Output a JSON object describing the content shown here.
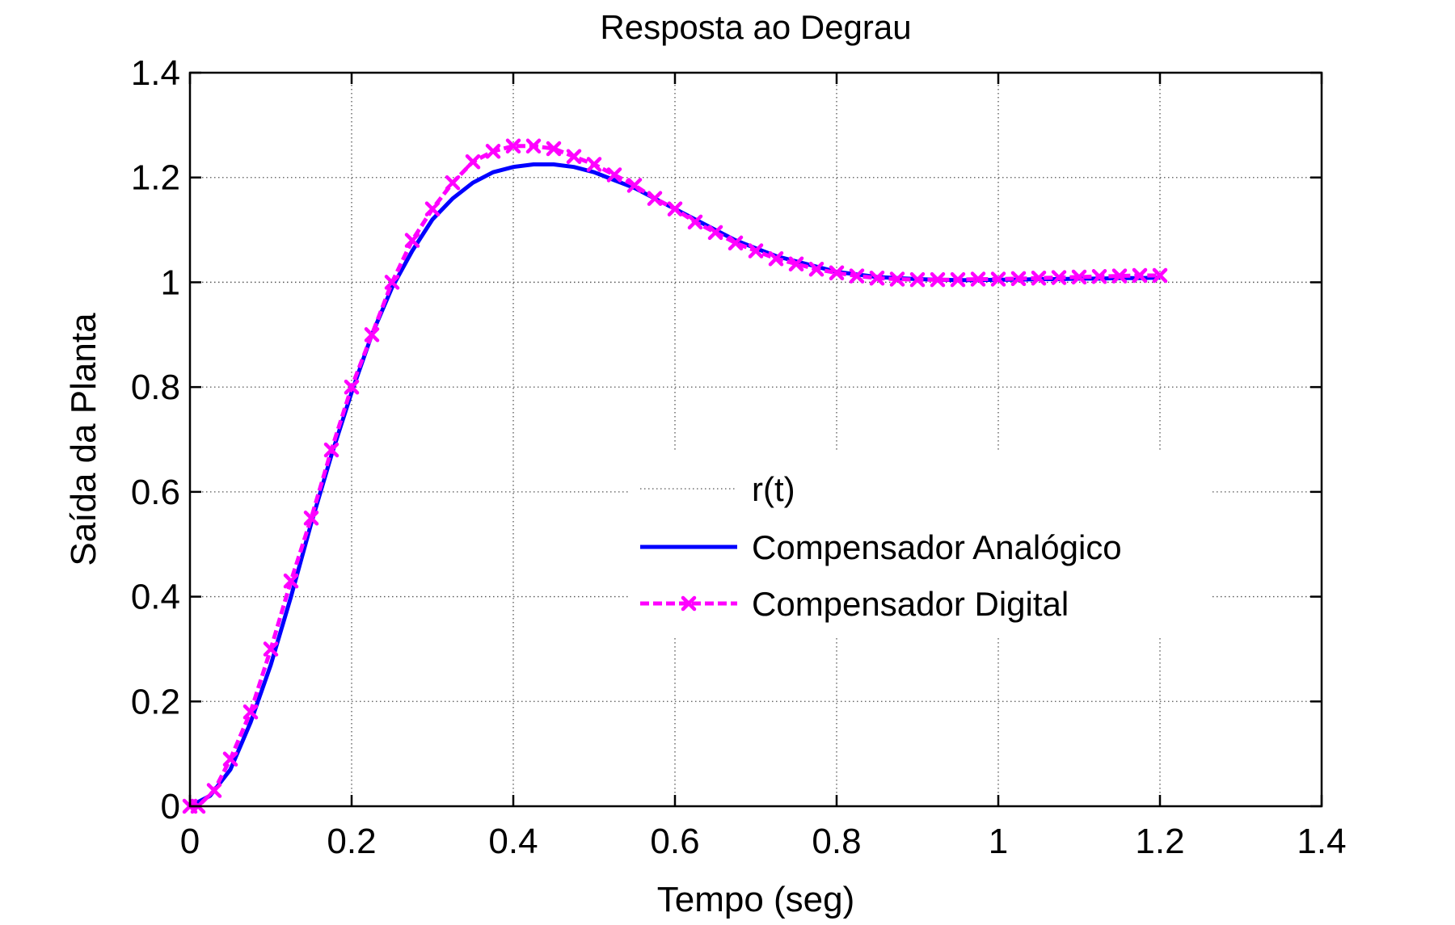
{
  "chart_data": {
    "type": "line",
    "title": "Resposta ao Degrau",
    "xlabel": "Tempo (seg)",
    "ylabel": "Saída da Planta",
    "xlim": [
      0,
      1.4
    ],
    "ylim": [
      0,
      1.4
    ],
    "grid": true,
    "legend_position": "center-right",
    "x_ticks": [
      0,
      0.2,
      0.4,
      0.6,
      0.8,
      1,
      1.2,
      1.4
    ],
    "x_tick_labels": [
      "0",
      "0.2",
      "0.4",
      "0.6",
      "0.8",
      "1",
      "1.2",
      "1.4"
    ],
    "y_ticks": [
      0,
      0.2,
      0.4,
      0.6,
      0.8,
      1,
      1.2,
      1.4
    ],
    "y_tick_labels": [
      "0",
      "0.2",
      "0.4",
      "0.6",
      "0.8",
      "1",
      "1.2",
      "1.4"
    ],
    "series": [
      {
        "name": "r(t)",
        "style": "dotted",
        "color": "#000000",
        "x": [
          0,
          1.4
        ],
        "y": [
          1,
          1
        ]
      },
      {
        "name": "Compensador Analógico",
        "style": "solid",
        "color": "#0000ff",
        "x": [
          0,
          0.025,
          0.05,
          0.075,
          0.1,
          0.125,
          0.15,
          0.175,
          0.2,
          0.225,
          0.25,
          0.275,
          0.3,
          0.325,
          0.35,
          0.375,
          0.4,
          0.425,
          0.45,
          0.475,
          0.5,
          0.525,
          0.55,
          0.575,
          0.6,
          0.625,
          0.65,
          0.675,
          0.7,
          0.725,
          0.75,
          0.775,
          0.8,
          0.825,
          0.85,
          0.875,
          0.9,
          0.925,
          0.95,
          0.975,
          1.0,
          1.025,
          1.05,
          1.075,
          1.1,
          1.125,
          1.15,
          1.175,
          1.2
        ],
        "y": [
          0,
          0.02,
          0.07,
          0.16,
          0.27,
          0.4,
          0.54,
          0.67,
          0.79,
          0.9,
          0.99,
          1.06,
          1.12,
          1.16,
          1.19,
          1.21,
          1.22,
          1.225,
          1.225,
          1.22,
          1.21,
          1.195,
          1.18,
          1.16,
          1.14,
          1.12,
          1.1,
          1.08,
          1.065,
          1.05,
          1.04,
          1.03,
          1.02,
          1.015,
          1.01,
          1.008,
          1.006,
          1.005,
          1.004,
          1.004,
          1.005,
          1.005,
          1.006,
          1.006,
          1.007,
          1.007,
          1.008,
          1.008,
          1.009
        ]
      },
      {
        "name": "Compensador Digital",
        "style": "dashed",
        "marker": "x",
        "color": "#ff00ff",
        "x": [
          0,
          0.01,
          0.03,
          0.05,
          0.075,
          0.1,
          0.125,
          0.15,
          0.175,
          0.2,
          0.225,
          0.25,
          0.275,
          0.3,
          0.325,
          0.35,
          0.375,
          0.4,
          0.425,
          0.45,
          0.475,
          0.5,
          0.525,
          0.55,
          0.575,
          0.6,
          0.625,
          0.65,
          0.675,
          0.7,
          0.725,
          0.75,
          0.775,
          0.8,
          0.825,
          0.85,
          0.875,
          0.9,
          0.925,
          0.95,
          0.975,
          1.0,
          1.025,
          1.05,
          1.075,
          1.1,
          1.125,
          1.15,
          1.175,
          1.2
        ],
        "y": [
          0,
          0,
          0.03,
          0.09,
          0.18,
          0.3,
          0.43,
          0.55,
          0.68,
          0.8,
          0.9,
          1.0,
          1.08,
          1.14,
          1.19,
          1.23,
          1.25,
          1.26,
          1.26,
          1.255,
          1.24,
          1.225,
          1.205,
          1.185,
          1.16,
          1.14,
          1.115,
          1.095,
          1.075,
          1.06,
          1.045,
          1.035,
          1.025,
          1.018,
          1.012,
          1.008,
          1.006,
          1.005,
          1.005,
          1.005,
          1.006,
          1.006,
          1.007,
          1.008,
          1.009,
          1.01,
          1.011,
          1.012,
          1.013,
          1.013
        ]
      }
    ]
  }
}
